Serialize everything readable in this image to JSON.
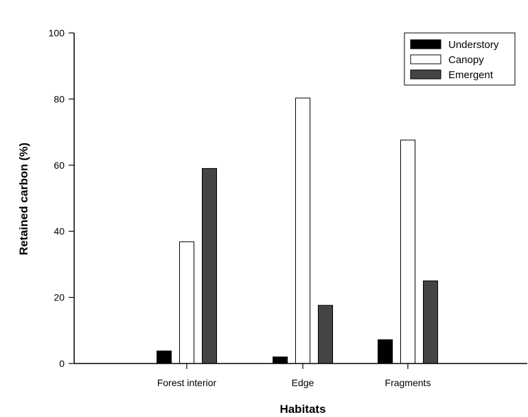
{
  "chart_data": {
    "type": "bar",
    "title": "",
    "xlabel": "Habitats",
    "ylabel": "Retained carbon (%)",
    "categories": [
      "Forest interior",
      "Edge",
      "Fragments"
    ],
    "ylim": [
      0,
      100
    ],
    "yticks": [
      0,
      20,
      40,
      60,
      80,
      100
    ],
    "series": [
      {
        "name": "Understory",
        "values": [
          3.8,
          2.0,
          7.2
        ],
        "color": "#000000"
      },
      {
        "name": "Canopy",
        "values": [
          36.8,
          80.3,
          67.6
        ],
        "color": "#ffffff"
      },
      {
        "name": "Emergent",
        "values": [
          59.0,
          17.6,
          25.0
        ],
        "color": "#444444"
      }
    ],
    "legend_position": "top-right",
    "grid": false
  }
}
